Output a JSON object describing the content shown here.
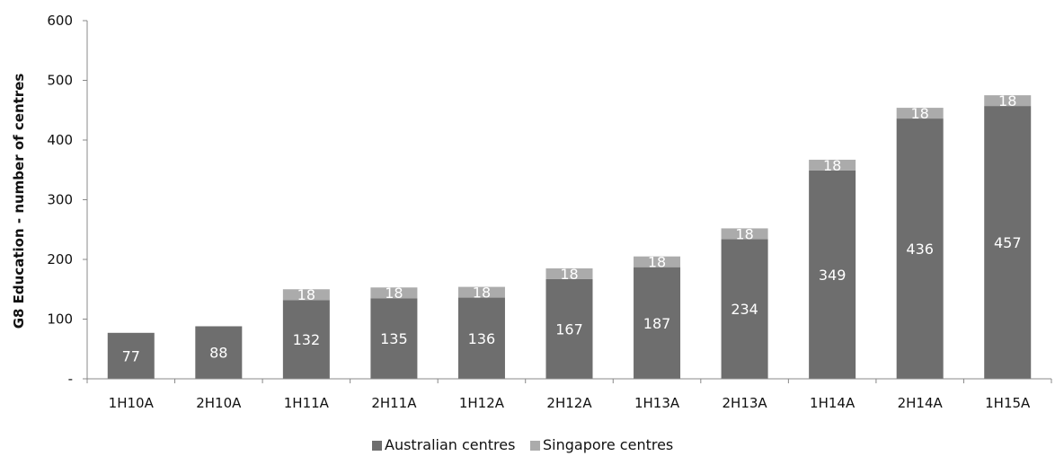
{
  "chart_data": {
    "type": "bar",
    "stacked": true,
    "categories": [
      "1H10A",
      "2H10A",
      "1H11A",
      "2H11A",
      "1H12A",
      "2H12A",
      "1H13A",
      "2H13A",
      "1H14A",
      "2H14A",
      "1H15A"
    ],
    "series": [
      {
        "name": "Australian centres",
        "values": [
          77,
          88,
          132,
          135,
          136,
          167,
          187,
          234,
          349,
          436,
          457
        ]
      },
      {
        "name": "Singapore centres",
        "values": [
          0,
          0,
          18,
          18,
          18,
          18,
          18,
          18,
          18,
          18,
          18
        ]
      }
    ],
    "data_labels": {
      "australian": [
        "77",
        "88",
        "132",
        "135",
        "136",
        "167",
        "187",
        "234",
        "349",
        "436",
        "457"
      ],
      "singapore": [
        "",
        "",
        "18",
        "18",
        "18",
        "18",
        "18",
        "18",
        "18",
        "18",
        "18"
      ]
    },
    "ylabel": "G8 Education - number of centres",
    "ylim": [
      0,
      600
    ],
    "yticks": [
      0,
      100,
      200,
      300,
      400,
      500,
      600
    ],
    "ytick_labels": [
      "-",
      "100",
      "200",
      "300",
      "400",
      "500",
      "600"
    ],
    "legend_position": "bottom-center",
    "grid": false,
    "colors": {
      "australian": "#6e6e6e",
      "singapore": "#ababab",
      "axis": "#888888"
    }
  }
}
